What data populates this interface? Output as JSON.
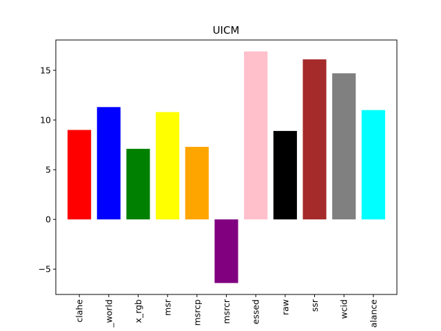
{
  "chart_data": {
    "type": "bar",
    "title": "UICM",
    "xlabel": "",
    "ylabel": "",
    "categories": [
      "clahe",
      "_world",
      "x_rgb",
      "msr",
      "msrcp",
      "msrcr",
      "essed",
      "raw",
      "ssr",
      "wcid",
      "alance"
    ],
    "values": [
      9.0,
      11.3,
      7.1,
      10.8,
      7.3,
      -6.4,
      16.9,
      8.9,
      16.1,
      14.7,
      11.0
    ],
    "colors": [
      "#ff0000",
      "#0000ff",
      "#008000",
      "#ffff00",
      "#ffa500",
      "#800080",
      "#ffc0cb",
      "#000000",
      "#a52a2a",
      "#808080",
      "#00ffff"
    ],
    "yticks": [
      -5,
      0,
      5,
      10,
      15
    ],
    "ytick_labels": [
      "−5",
      "0",
      "5",
      "10",
      "15"
    ],
    "ylim": [
      -7.55,
      18.05
    ],
    "grid": false
  }
}
